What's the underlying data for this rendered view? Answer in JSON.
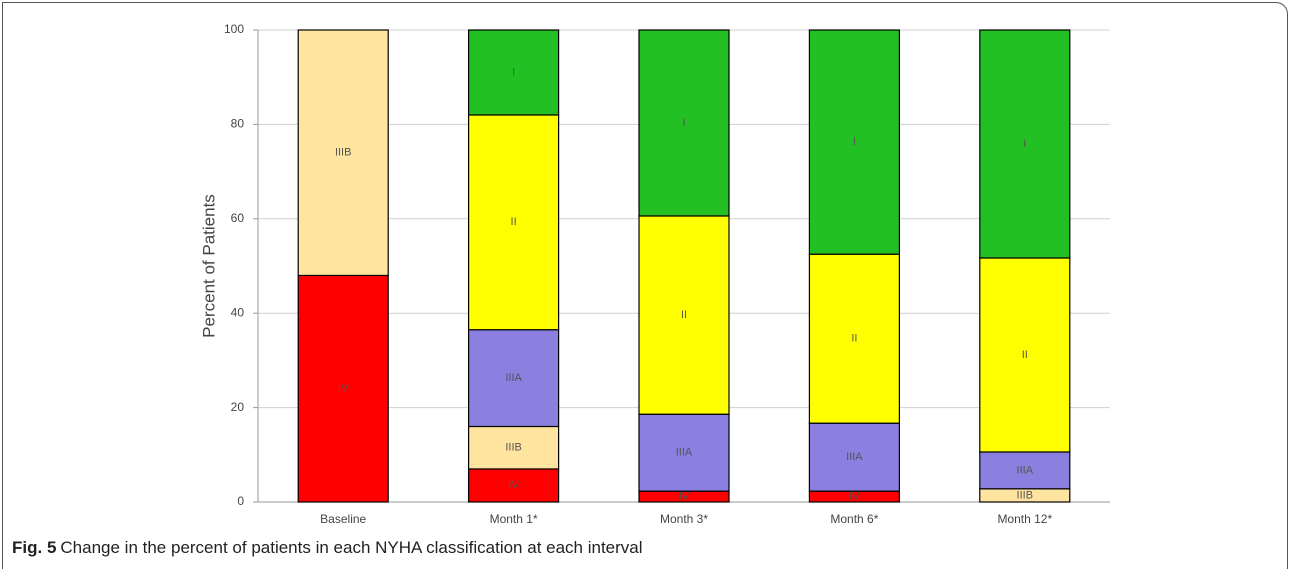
{
  "chart_data": {
    "type": "stacked-bar",
    "y_label": "Percent of Patients",
    "categories": [
      "Baseline",
      "Month 1*",
      "Month 3*",
      "Month 6*",
      "Month 12*"
    ],
    "series": [
      {
        "name": "IV",
        "color": "#ff0000",
        "values": [
          48,
          7,
          2.3,
          2.3,
          0
        ]
      },
      {
        "name": "IIIB",
        "color": "#ffe4a0",
        "values": [
          52,
          9,
          0,
          0,
          2.8
        ]
      },
      {
        "name": "IIIA",
        "color": "#8b7fe0",
        "values": [
          0,
          20.5,
          16.3,
          14.4,
          7.8
        ]
      },
      {
        "name": "II",
        "color": "#ffff00",
        "values": [
          0,
          45.5,
          42,
          35.8,
          41.1
        ]
      },
      {
        "name": "I",
        "color": "#22c022",
        "values": [
          0,
          18,
          39.4,
          47.5,
          48.3
        ]
      }
    ],
    "ylim": [
      0,
      100
    ],
    "yticks": [
      0,
      20,
      40,
      60,
      80,
      100
    ],
    "grid": true
  },
  "caption": {
    "label": "Fig. 5",
    "text": "Change in the percent of patients in each NYHA classification at each interval"
  }
}
